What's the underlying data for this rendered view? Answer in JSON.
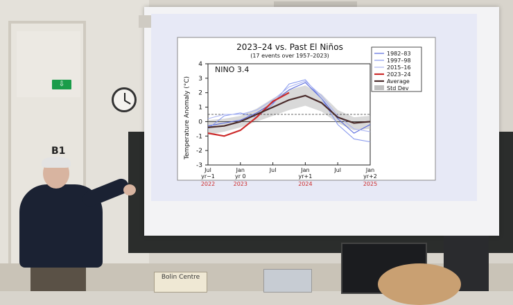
{
  "scene": {
    "room_label": "B1",
    "exit_sign": "⇩",
    "desk_sign": "Bolin Centre"
  },
  "chart_data": {
    "type": "line",
    "title": "2023–24 vs. Past El Niños",
    "subtitle": "(17 events over 1957–2023)",
    "inset_label": "NINO 3.4",
    "ylabel": "Temperature Anomaly (°C)",
    "xlabel": "",
    "ylim": [
      -3,
      4
    ],
    "yticks": [
      -3,
      -2,
      -1,
      0,
      1,
      2,
      3,
      4
    ],
    "x_ticks": [
      {
        "m": 0,
        "l1": "Jul",
        "l2": "yr−1",
        "year": "2022"
      },
      {
        "m": 6,
        "l1": "Jan",
        "l2": "yr 0",
        "year": "2023"
      },
      {
        "m": 12,
        "l1": "Jul",
        "l2": "",
        "year": ""
      },
      {
        "m": 18,
        "l1": "Jan",
        "l2": "yr+1",
        "year": "2024"
      },
      {
        "m": 24,
        "l1": "Jul",
        "l2": "",
        "year": ""
      },
      {
        "m": 30,
        "l1": "Jan",
        "l2": "yr+2",
        "year": "2025"
      }
    ],
    "xlim": [
      0,
      30
    ],
    "legend": [
      "1982–83",
      "1997–98",
      "2015–16",
      "2023–24",
      "Average",
      "Std Dev"
    ],
    "legend_position": "top-right",
    "colors": {
      "1982–83": "#5566dd",
      "1997–98": "#8899ee",
      "2015–16": "#aab4f2",
      "2023–24": "#cc2a2a",
      "Average": "#4a2b2b",
      "Std Dev": "#bfbfbf"
    },
    "series": [
      {
        "name": "1982–83",
        "x": [
          0,
          3,
          6,
          9,
          12,
          15,
          18,
          21,
          24,
          27,
          30
        ],
        "y": [
          -0.3,
          -0.1,
          0.1,
          0.6,
          1.3,
          2.2,
          2.7,
          1.6,
          0.2,
          -0.8,
          -0.2
        ]
      },
      {
        "name": "1997–98",
        "x": [
          0,
          3,
          6,
          9,
          12,
          15,
          18,
          21,
          24,
          27,
          30
        ],
        "y": [
          -0.5,
          0.4,
          0.6,
          0.3,
          1.2,
          2.6,
          2.9,
          1.6,
          -0.2,
          -1.2,
          -1.4
        ]
      },
      {
        "name": "2015–16",
        "x": [
          0,
          3,
          6,
          9,
          12,
          15,
          18,
          21,
          24,
          27,
          30
        ],
        "y": [
          0.2,
          0.5,
          0.5,
          0.8,
          1.5,
          2.4,
          2.8,
          1.8,
          0.4,
          -0.5,
          -0.7
        ]
      },
      {
        "name": "2023–24",
        "x": [
          0,
          3,
          6,
          9,
          12,
          15
        ],
        "y": [
          -0.8,
          -1.0,
          -0.6,
          0.3,
          1.4,
          2.0
        ]
      },
      {
        "name": "Average",
        "x": [
          0,
          3,
          6,
          9,
          12,
          15,
          18,
          21,
          24,
          27,
          30
        ],
        "y": [
          -0.4,
          -0.3,
          0.0,
          0.5,
          1.0,
          1.5,
          1.8,
          1.3,
          0.3,
          -0.1,
          0.0
        ]
      }
    ],
    "std_dev_band": {
      "x": [
        0,
        3,
        6,
        9,
        12,
        15,
        18,
        21,
        24,
        27,
        30
      ],
      "lower": [
        -0.9,
        -0.7,
        -0.4,
        0.0,
        0.4,
        0.8,
        1.1,
        0.7,
        -0.1,
        -0.6,
        -0.5
      ],
      "upper": [
        0.1,
        0.2,
        0.4,
        0.9,
        1.6,
        2.2,
        2.5,
        1.9,
        0.8,
        0.3,
        0.4
      ]
    },
    "reference_line": 0.5,
    "grid": false
  }
}
